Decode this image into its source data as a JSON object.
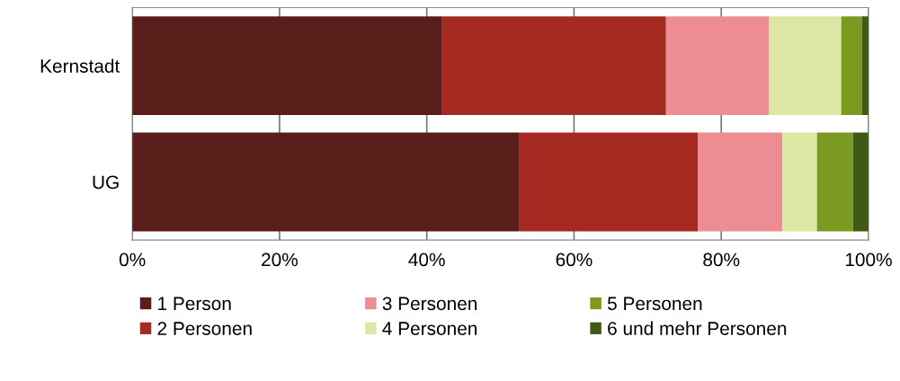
{
  "chart_data": {
    "type": "bar",
    "orientation": "horizontal",
    "stacked": true,
    "categories": [
      "Kernstadt",
      "UG"
    ],
    "series": [
      {
        "name": "1 Person",
        "color": "#5a1e1a",
        "values": [
          42.0,
          52.5
        ]
      },
      {
        "name": "2 Personen",
        "color": "#a52a22",
        "values": [
          30.5,
          24.3
        ]
      },
      {
        "name": "3 Personen",
        "color": "#ee8c94",
        "values": [
          14.0,
          11.5
        ]
      },
      {
        "name": "4 Personen",
        "color": "#dde6a4",
        "values": [
          9.8,
          4.7
        ]
      },
      {
        "name": "5 Personen",
        "color": "#7a9a20",
        "values": [
          2.8,
          4.9
        ]
      },
      {
        "name": "6 und mehr Personen",
        "color": "#3e5a14",
        "values": [
          0.9,
          2.1
        ]
      }
    ],
    "xlim": [
      0,
      100
    ],
    "xticks": [
      {
        "value": 0,
        "label": "0%"
      },
      {
        "value": 20,
        "label": "20%"
      },
      {
        "value": 40,
        "label": "40%"
      },
      {
        "value": 60,
        "label": "60%"
      },
      {
        "value": 80,
        "label": "80%"
      },
      {
        "value": 100,
        "label": "100%"
      }
    ],
    "grid": "x",
    "legend": "bottom"
  }
}
